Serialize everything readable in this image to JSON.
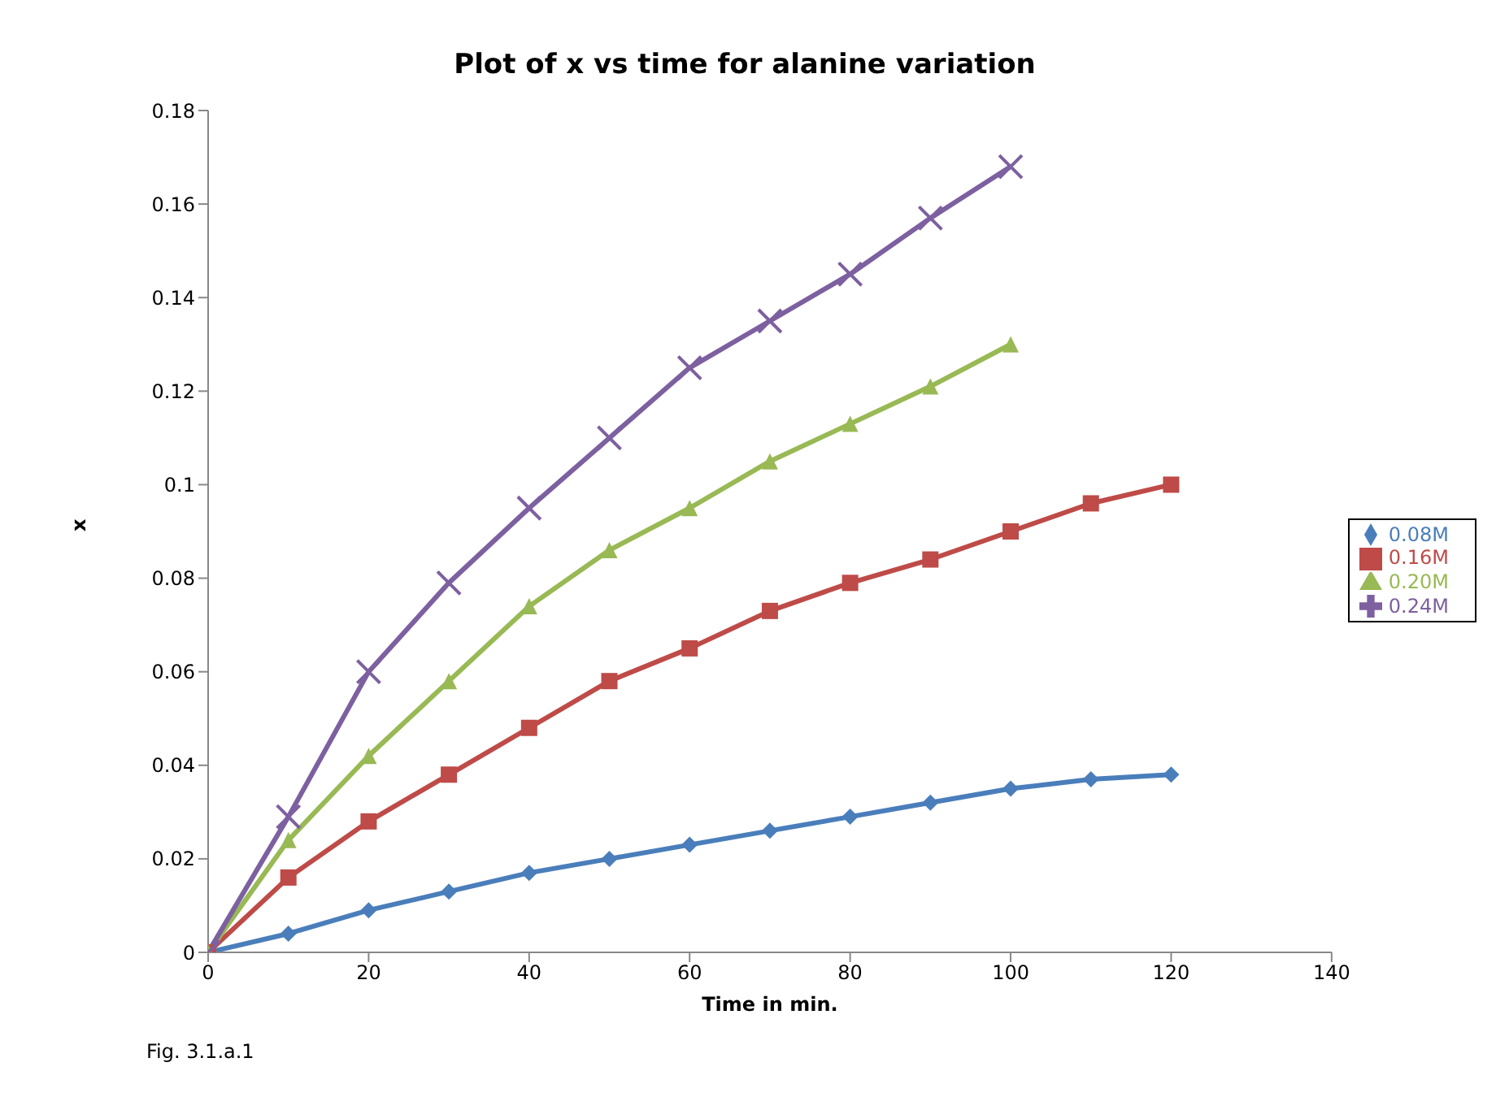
{
  "chart_data": {
    "type": "line",
    "title": "Plot of x vs time for alanine variation",
    "xlabel": "Time in min.",
    "ylabel": "x",
    "annotations": [
      "Fig. 3.1.a.1"
    ],
    "xlim": [
      0,
      140
    ],
    "xticks": [
      0,
      20,
      40,
      60,
      80,
      100,
      120,
      140
    ],
    "ylim": [
      0,
      0.18
    ],
    "yticks": [
      0,
      0.02,
      0.04,
      0.06,
      0.08,
      0.1,
      0.12,
      0.14,
      0.16,
      0.18
    ],
    "grid": false,
    "legend": "right",
    "series": [
      {
        "name": "0.08M",
        "color": "#4a7ebb",
        "marker": "diamond",
        "x": [
          0,
          10,
          20,
          30,
          40,
          50,
          60,
          70,
          80,
          90,
          100,
          110,
          120
        ],
        "values": [
          0,
          0.004,
          0.009,
          0.013,
          0.017,
          0.02,
          0.023,
          0.026,
          0.029,
          0.032,
          0.035,
          0.037,
          0.038
        ]
      },
      {
        "name": "0.16M",
        "color": "#be4b48",
        "marker": "square",
        "x": [
          0,
          10,
          20,
          30,
          40,
          50,
          60,
          70,
          80,
          90,
          100,
          110,
          120
        ],
        "values": [
          0,
          0.016,
          0.028,
          0.038,
          0.048,
          0.058,
          0.065,
          0.073,
          0.079,
          0.084,
          0.09,
          0.096,
          0.1
        ]
      },
      {
        "name": "0.20M",
        "color": "#98b954",
        "marker": "triangle",
        "x": [
          0,
          10,
          20,
          30,
          40,
          50,
          60,
          70,
          80,
          90,
          100
        ],
        "values": [
          0,
          0.024,
          0.042,
          0.058,
          0.074,
          0.086,
          0.095,
          0.105,
          0.113,
          0.121,
          0.13
        ]
      },
      {
        "name": "0.24M",
        "color": "#7d60a0",
        "marker": "cross",
        "x": [
          0,
          10,
          20,
          30,
          40,
          50,
          60,
          70,
          80,
          90,
          100
        ],
        "values": [
          0,
          0.029,
          0.06,
          0.079,
          0.095,
          0.11,
          0.125,
          0.135,
          0.145,
          0.157,
          0.168
        ]
      }
    ]
  }
}
